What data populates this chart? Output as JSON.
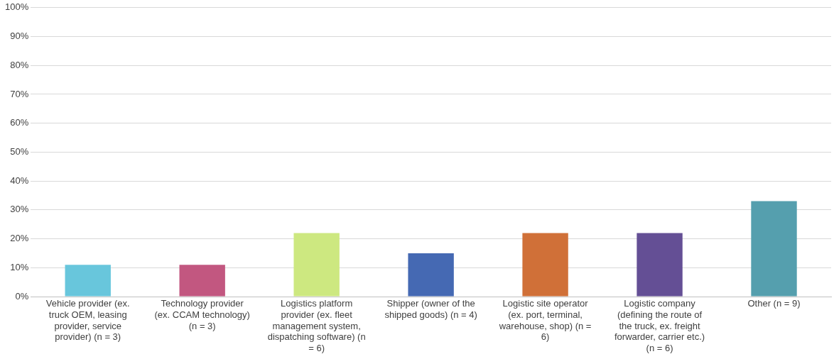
{
  "chart_data": {
    "type": "bar",
    "categories": [
      "Vehicle provider (ex. truck OEM, leasing provider, service provider) (n = 3)",
      "Technology provider (ex. CCAM technology) (n = 3)",
      "Logistics platform provider (ex. fleet management system, dispatching software) (n = 6)",
      "Shipper (owner of the shipped goods) (n = 4)",
      "Logistic site operator (ex. port, terminal, warehouse, shop) (n = 6)",
      "Logistic company (defining the route of the truck, ex. freight forwarder, carrier etc.) (n = 6)",
      "Other (n = 9)"
    ],
    "values": [
      11,
      11,
      22,
      15,
      22,
      22,
      33
    ],
    "colors": [
      "#68c6dc",
      "#c25780",
      "#cde880",
      "#4569b3",
      "#d07038",
      "#644f95",
      "#559fae"
    ],
    "ylim": [
      0,
      100
    ],
    "yticks": [
      {
        "value": 0,
        "label": "0%"
      },
      {
        "value": 10,
        "label": "10%"
      },
      {
        "value": 20,
        "label": "20%"
      },
      {
        "value": 30,
        "label": "30%"
      },
      {
        "value": 40,
        "label": "40%"
      },
      {
        "value": 50,
        "label": "50%"
      },
      {
        "value": 60,
        "label": "60%"
      },
      {
        "value": 70,
        "label": "70%"
      },
      {
        "value": 80,
        "label": "80%"
      },
      {
        "value": 90,
        "label": "90%"
      },
      {
        "value": 100,
        "label": "100%"
      }
    ],
    "grid": "y"
  }
}
